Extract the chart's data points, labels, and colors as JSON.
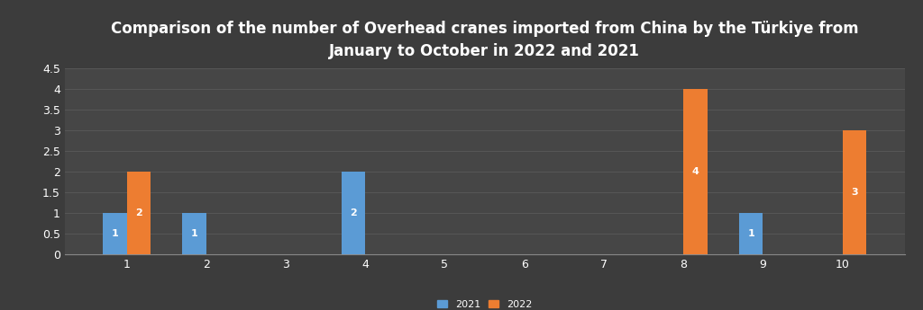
{
  "title": "Comparison of the number of Overhead cranes imported from China by the Türkiye from\nJanuary to October in 2022 and 2021",
  "months": [
    1,
    2,
    3,
    4,
    5,
    6,
    7,
    8,
    9,
    10
  ],
  "values_2021": [
    1,
    1,
    0,
    2,
    0,
    0,
    0,
    0,
    1,
    0
  ],
  "values_2022": [
    2,
    0,
    0,
    0,
    0,
    0,
    0,
    4,
    0,
    3
  ],
  "color_2021": "#5B9BD5",
  "color_2022": "#ED7D31",
  "background_color": "#3C3C3C",
  "plot_bg_color": "#464646",
  "text_color": "#FFFFFF",
  "grid_color": "#5A5A5A",
  "ylim": [
    0,
    4.5
  ],
  "yticks": [
    0,
    0.5,
    1,
    1.5,
    2,
    2.5,
    3,
    3.5,
    4,
    4.5
  ],
  "bar_width": 0.3,
  "title_fontsize": 12,
  "tick_fontsize": 9,
  "legend_fontsize": 8,
  "bar_label_fontsize": 8
}
